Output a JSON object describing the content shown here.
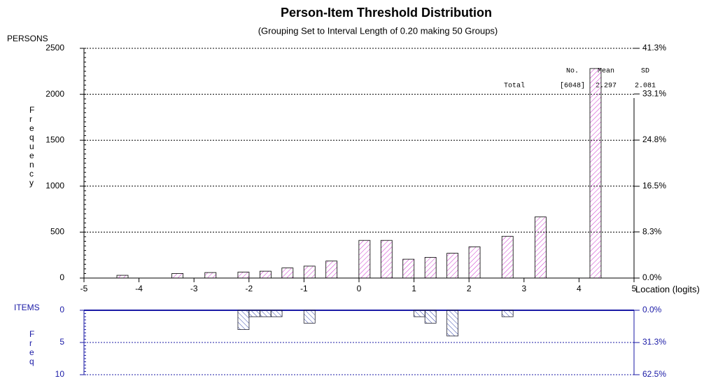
{
  "chart_data": [
    {
      "type": "bar",
      "title": "Person-Item Threshold Distribution",
      "subtitle": "(Grouping Set to Interval Length of  0.20  making  50  Groups)",
      "panel_label": "PERSONS",
      "ylabel": "Frequency",
      "xlabel": "Location (logits)",
      "x": [
        -4.3,
        -3.3,
        -2.7,
        -2.1,
        -1.7,
        -1.3,
        -0.9,
        -0.5,
        0.1,
        0.5,
        0.9,
        1.3,
        1.7,
        2.1,
        2.7,
        3.3,
        4.3
      ],
      "values": [
        30,
        50,
        60,
        65,
        75,
        110,
        130,
        185,
        410,
        410,
        205,
        225,
        270,
        340,
        455,
        665,
        2280
      ],
      "color": "#cc33cc",
      "xlim": [
        -5,
        5
      ],
      "xticks": [
        -5,
        -4,
        -3,
        -2,
        -1,
        0,
        1,
        2,
        3,
        4,
        5
      ],
      "ylim": [
        0,
        2500
      ],
      "yticks": [
        0,
        500,
        1000,
        1500,
        2000,
        2500
      ],
      "y2lim": [
        0,
        41.3
      ],
      "y2ticks": [
        {
          "value": 0,
          "label": "0.0%"
        },
        {
          "value": 8.3,
          "label": "8.3%"
        },
        {
          "value": 16.5,
          "label": "16.5%"
        },
        {
          "value": 24.8,
          "label": "24.8%"
        },
        {
          "value": 33.1,
          "label": "33.1%"
        },
        {
          "value": 41.3,
          "label": "41.3%"
        }
      ],
      "grid": true,
      "stats": {
        "headers": [
          "No.",
          "Mean",
          "SD"
        ],
        "row_label": "Total",
        "values": [
          "[6048]",
          "2.297",
          "2.081"
        ]
      }
    },
    {
      "type": "bar",
      "panel_label": "ITEMS",
      "ylabel": "Freq",
      "x": [
        -2.1,
        -1.9,
        -1.7,
        -1.5,
        -0.9,
        1.1,
        1.3,
        1.7,
        2.7
      ],
      "values": [
        3,
        1,
        1,
        1,
        2,
        1,
        2,
        4,
        1
      ],
      "color": "#3344aa",
      "xlim": [
        -5,
        5
      ],
      "ylim": [
        0,
        10
      ],
      "yticks": [
        0,
        5,
        10
      ],
      "y2lim": [
        0,
        62.5
      ],
      "y2ticks": [
        {
          "value": 0,
          "label": "0.0%"
        },
        {
          "value": 31.3,
          "label": "31.3%"
        },
        {
          "value": 62.5,
          "label": "62.5%"
        }
      ],
      "grid": true,
      "inverted": true
    }
  ]
}
